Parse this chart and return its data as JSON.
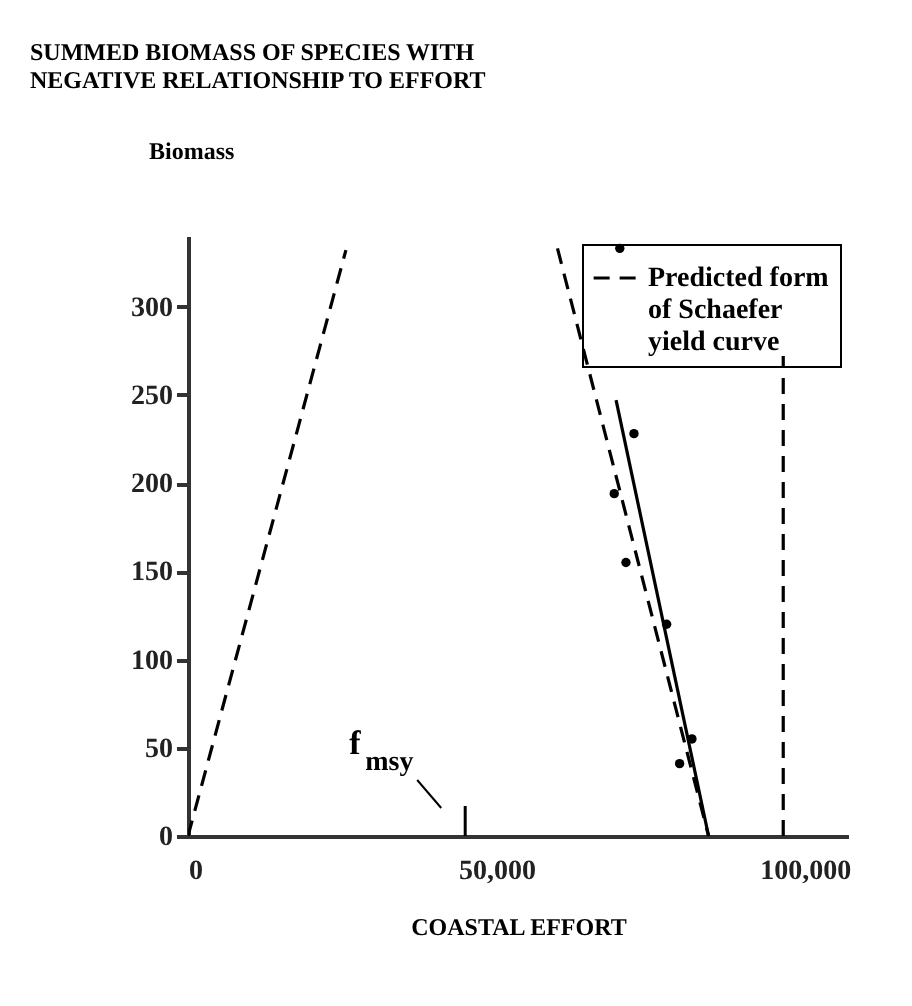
{
  "chart_data": {
    "type": "line",
    "title": "SUMMED BIOMASS OF SPECIES WITH NEGATIVE RELATIONSHIP TO EFFORT",
    "xlabel": "COASTAL EFFORT",
    "ylabel": "Biomass",
    "xlim": [
      0,
      107000
    ],
    "ylim": [
      0,
      340
    ],
    "xticks": [
      0,
      {
        "value": 50000,
        "label": "50,000"
      },
      {
        "value": 100000,
        "label": "100,000"
      }
    ],
    "yticks": [
      0,
      50,
      100,
      150,
      200,
      250,
      300
    ],
    "grid": false,
    "legend": "top right",
    "series": [
      {
        "name": "Predicted form of Schaefer yield curve",
        "line_style": "dashed",
        "color": "#000000",
        "x": [
          0,
          25600,
          42000,
          59900,
          84400
        ],
        "values": [
          0,
          332,
          null,
          333,
          0
        ]
      },
      {
        "line_style": "solid",
        "color": "#000000",
        "x": [
          69400,
          84400
        ],
        "values": [
          247,
          0
        ]
      },
      {
        "type": "scatter",
        "marker": "circle",
        "color": "#000000",
        "x": [
          70000,
          72300,
          69100,
          71000,
          77600,
          81700,
          79700
        ],
        "values": [
          333,
          228,
          194,
          155,
          120,
          55,
          41
        ]
      }
    ],
    "ref_lines": [
      {
        "axis": "x",
        "value": 96500,
        "line_style": "dashed",
        "color": "#000000"
      }
    ],
    "annotations": [
      "f$_{msy}$"
    ]
  }
}
